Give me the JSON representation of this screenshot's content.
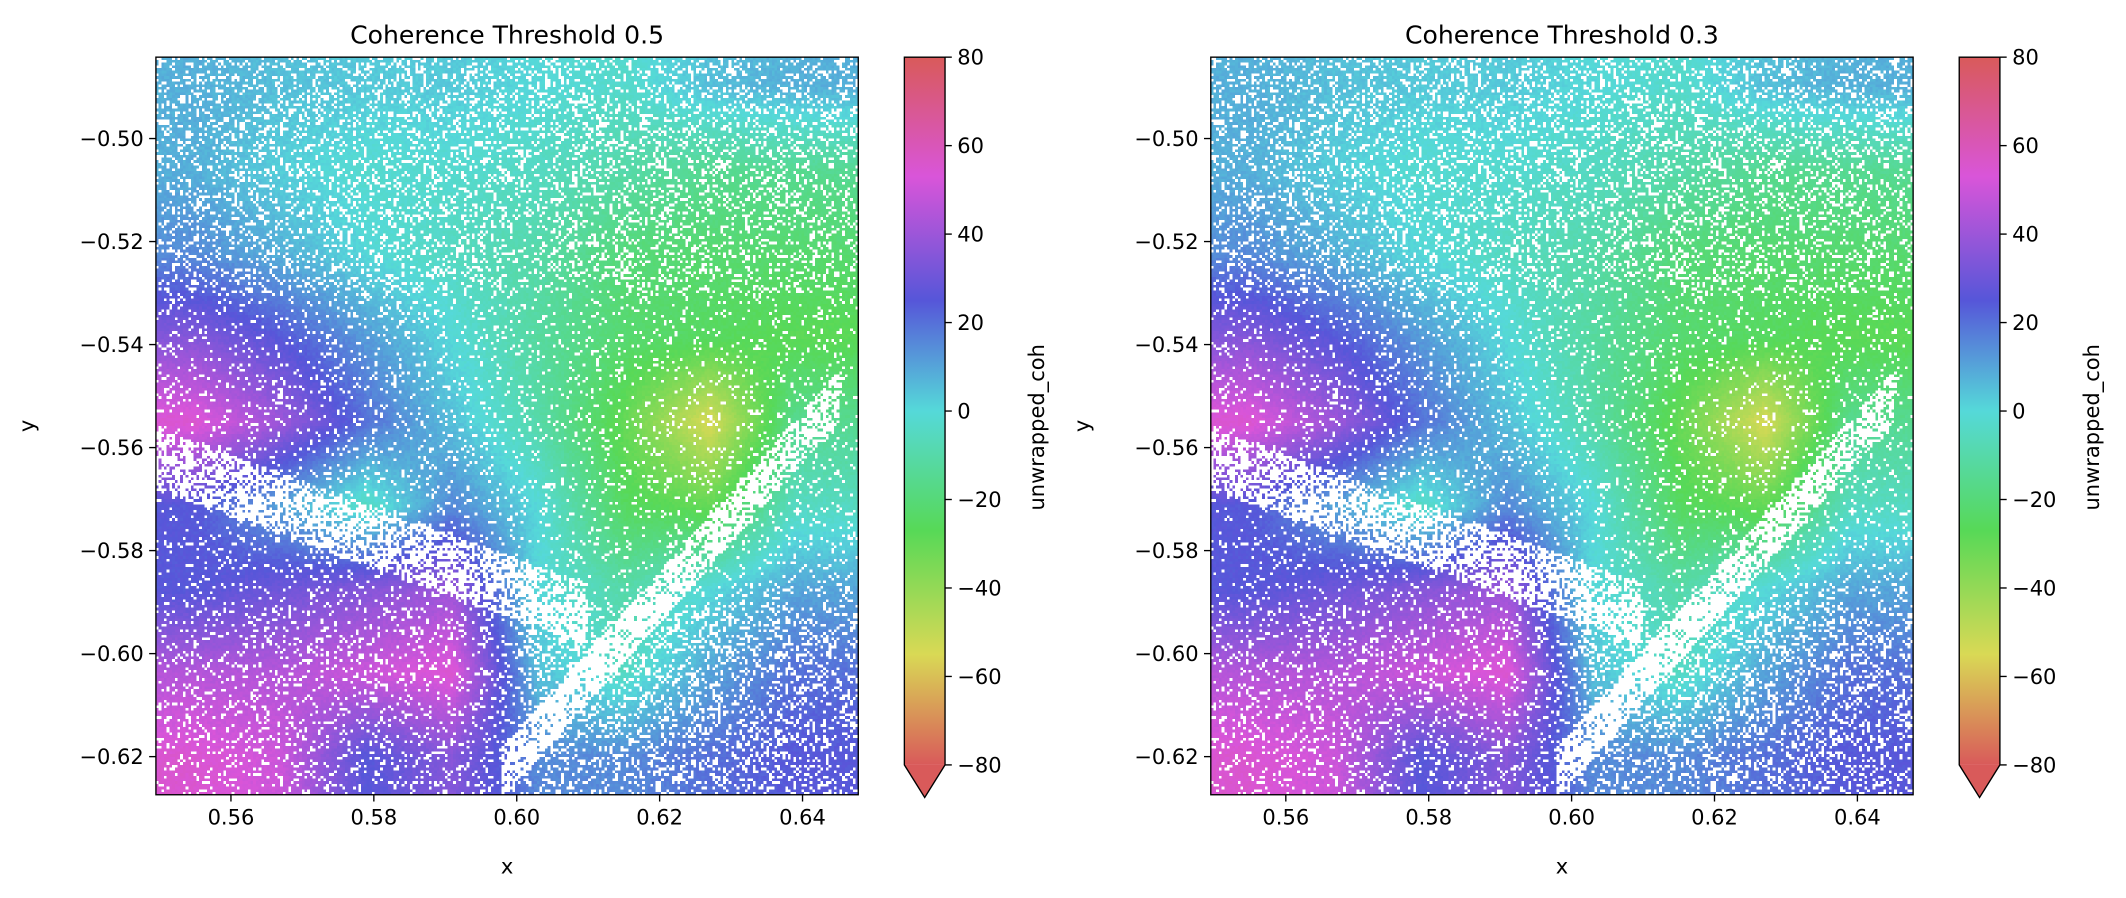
{
  "colormap_stops": [
    {
      "value": -80,
      "color": "#d95a5a"
    },
    {
      "value": -55,
      "color": "#d9d955"
    },
    {
      "value": -27,
      "color": "#57d957"
    },
    {
      "value": 0,
      "color": "#55d9d9"
    },
    {
      "value": 25,
      "color": "#5656d9"
    },
    {
      "value": 53,
      "color": "#d955d9"
    },
    {
      "value": 80,
      "color": "#d95a5a"
    }
  ],
  "mask_color": "#ffffff",
  "chart_data": [
    {
      "type": "heatmap",
      "title": "Coherence Threshold 0.5",
      "xlabel": "x",
      "ylabel": "y",
      "xlim": [
        0.5495,
        0.6478
      ],
      "ylim": [
        -0.6274,
        -0.4842
      ],
      "xticks": [
        "0.56",
        "0.58",
        "0.60",
        "0.62",
        "0.64"
      ],
      "xtick_values": [
        0.56,
        0.58,
        0.6,
        0.62,
        0.64
      ],
      "yticks": [
        "−0.50",
        "−0.52",
        "−0.54",
        "−0.56",
        "−0.58",
        "−0.60",
        "−0.62"
      ],
      "ytick_values": [
        -0.5,
        -0.52,
        -0.54,
        -0.56,
        -0.58,
        -0.6,
        -0.62
      ],
      "colorbar": {
        "label": "unwrapped_coh",
        "range": [
          -80,
          80
        ],
        "extend": "min",
        "ticks": [
          "−80",
          "−60",
          "−40",
          "−20",
          "0",
          "20",
          "40",
          "60",
          "80"
        ],
        "tick_values": [
          -80,
          -60,
          -40,
          -20,
          0,
          20,
          40,
          60,
          80
        ]
      },
      "approx_grid_x": [
        0.555,
        0.567,
        0.579,
        0.591,
        0.603,
        0.615,
        0.627,
        0.639
      ],
      "approx_grid_y": [
        -0.49,
        -0.51,
        -0.53,
        -0.545,
        -0.56,
        -0.575,
        -0.59,
        -0.605,
        -0.62
      ],
      "approx_values": [
        [
          8,
          5,
          3,
          3,
          0,
          -3,
          5,
          8
        ],
        [
          8,
          2,
          -2,
          -2,
          -5,
          -10,
          -15,
          -15
        ],
        [
          15,
          8,
          0,
          -5,
          -10,
          -20,
          -22,
          -22
        ],
        [
          35,
          25,
          12,
          0,
          -12,
          -22,
          -25,
          -28
        ],
        [
          55,
          40,
          20,
          5,
          -10,
          -30,
          -55,
          -15
        ],
        [
          25,
          10,
          -5,
          15,
          0,
          -25,
          -30,
          -5
        ],
        [
          25,
          30,
          35,
          40,
          0,
          -10,
          0,
          10
        ],
        [
          45,
          45,
          50,
          55,
          5,
          -5,
          10,
          20
        ],
        [
          55,
          50,
          25,
          35,
          15,
          15,
          20,
          25
        ]
      ]
    },
    {
      "type": "heatmap",
      "title": "Coherence Threshold 0.3",
      "xlabel": "x",
      "ylabel": "y",
      "xlim": [
        0.5495,
        0.6478
      ],
      "ylim": [
        -0.6274,
        -0.4842
      ],
      "xticks": [
        "0.56",
        "0.58",
        "0.60",
        "0.62",
        "0.64"
      ],
      "xtick_values": [
        0.56,
        0.58,
        0.6,
        0.62,
        0.64
      ],
      "yticks": [
        "−0.50",
        "−0.52",
        "−0.54",
        "−0.56",
        "−0.58",
        "−0.60",
        "−0.62"
      ],
      "ytick_values": [
        -0.5,
        -0.52,
        -0.54,
        -0.56,
        -0.58,
        -0.6,
        -0.62
      ],
      "colorbar": {
        "label": "unwrapped_coh",
        "range": [
          -80,
          80
        ],
        "extend": "min",
        "ticks": [
          "−80",
          "−60",
          "−40",
          "−20",
          "0",
          "20",
          "40",
          "60",
          "80"
        ],
        "tick_values": [
          -80,
          -60,
          -40,
          -20,
          0,
          20,
          40,
          60,
          80
        ]
      },
      "approx_grid_x": [
        0.555,
        0.567,
        0.579,
        0.591,
        0.603,
        0.615,
        0.627,
        0.639
      ],
      "approx_grid_y": [
        -0.49,
        -0.51,
        -0.53,
        -0.545,
        -0.56,
        -0.575,
        -0.59,
        -0.605,
        -0.62
      ],
      "approx_values": [
        [
          8,
          5,
          3,
          3,
          0,
          -3,
          5,
          8
        ],
        [
          8,
          2,
          -2,
          -2,
          -5,
          -10,
          -15,
          -15
        ],
        [
          15,
          8,
          0,
          -5,
          -10,
          -20,
          -22,
          -22
        ],
        [
          35,
          25,
          12,
          0,
          -12,
          -22,
          -25,
          -28
        ],
        [
          55,
          40,
          20,
          5,
          -10,
          -30,
          -55,
          -15
        ],
        [
          25,
          10,
          -5,
          15,
          0,
          -25,
          -30,
          -5
        ],
        [
          25,
          30,
          35,
          40,
          0,
          -10,
          0,
          10
        ],
        [
          45,
          45,
          50,
          55,
          5,
          -5,
          10,
          20
        ],
        [
          55,
          50,
          25,
          35,
          15,
          15,
          20,
          25
        ]
      ]
    }
  ]
}
